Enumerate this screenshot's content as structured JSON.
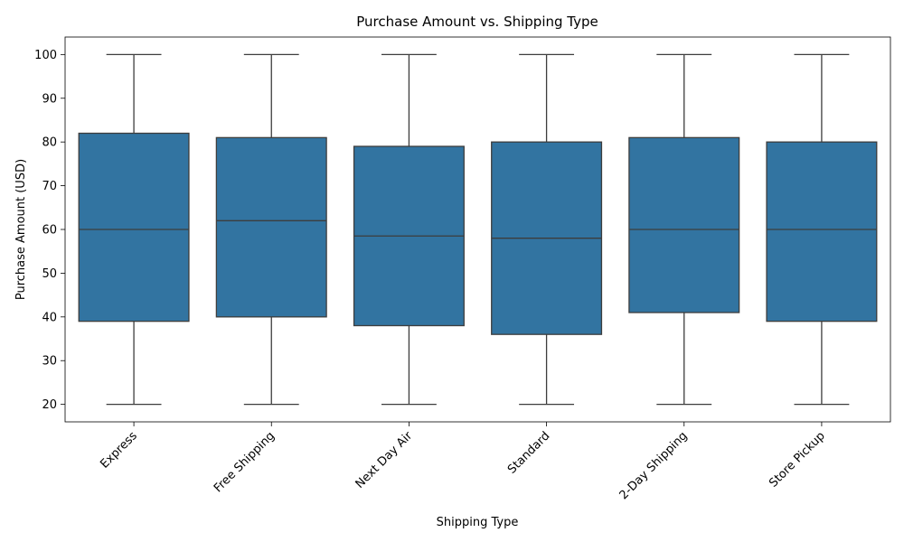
{
  "chart_data": {
    "type": "boxplot",
    "title": "Purchase Amount vs. Shipping Type",
    "xlabel": "Shipping Type",
    "ylabel": "Purchase Amount (USD)",
    "ylim": [
      16,
      104
    ],
    "yticks": [
      20,
      30,
      40,
      50,
      60,
      70,
      80,
      90,
      100
    ],
    "grid": false,
    "box_color": "#3274a1",
    "line_color": "#3d3d3d",
    "categories": [
      "Express",
      "Free Shipping",
      "Next Day Air",
      "Standard",
      "2-Day Shipping",
      "Store Pickup"
    ],
    "boxes": [
      {
        "category": "Express",
        "min": 20,
        "q1": 39,
        "median": 60,
        "q3": 82,
        "max": 100
      },
      {
        "category": "Free Shipping",
        "min": 20,
        "q1": 40,
        "median": 62,
        "q3": 81,
        "max": 100
      },
      {
        "category": "Next Day Air",
        "min": 20,
        "q1": 38,
        "median": 58.5,
        "q3": 79,
        "max": 100
      },
      {
        "category": "Standard",
        "min": 20,
        "q1": 36,
        "median": 58,
        "q3": 80,
        "max": 100
      },
      {
        "category": "2-Day Shipping",
        "min": 20,
        "q1": 41,
        "median": 60,
        "q3": 81,
        "max": 100
      },
      {
        "category": "Store Pickup",
        "min": 20,
        "q1": 39,
        "median": 60,
        "q3": 80,
        "max": 100
      }
    ]
  }
}
